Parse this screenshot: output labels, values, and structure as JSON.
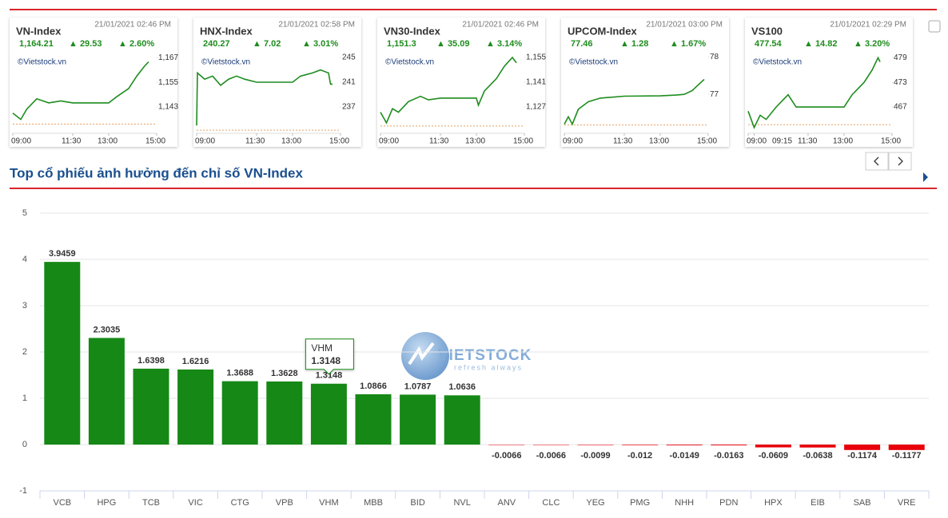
{
  "chart_data": [
    {
      "type": "line",
      "title": "VN-Index",
      "time": "21/01/2021 02:46 PM",
      "price": "1,164.21",
      "change": "▲ 29.53",
      "change_pct": "▲ 2.60%",
      "source": "©Vietstock.vn",
      "color": "#1e8c1e",
      "reference": 1134.68,
      "x": [
        540,
        560,
        575,
        600,
        630,
        660,
        690,
        780,
        800,
        830,
        850,
        870,
        880
      ],
      "values": [
        1140,
        1137,
        1142,
        1147,
        1145,
        1146,
        1145,
        1145,
        1148,
        1152,
        1158,
        1163,
        1165
      ],
      "xlim": [
        540,
        900
      ],
      "xticks": [
        {
          "value": 540,
          "label": "09:00"
        },
        {
          "value": 690,
          "label": "11:30"
        },
        {
          "value": 780,
          "label": "13:00"
        },
        {
          "value": 900,
          "label": "15:00"
        }
      ],
      "ylim": [
        1131,
        1171
      ],
      "yticks": [
        {
          "value": 1143,
          "label": "1,143"
        },
        {
          "value": 1155,
          "label": "1,155"
        },
        {
          "value": 1167,
          "label": "1,167"
        }
      ]
    },
    {
      "type": "line",
      "title": "HNX-Index",
      "time": "21/01/2021 02:58 PM",
      "price": "240.27",
      "change": "▲ 7.02",
      "change_pct": "▲ 3.01%",
      "source": "©Vietstock.vn",
      "color": "#1e8c1e",
      "reference": 233.25,
      "x": [
        540,
        542,
        560,
        580,
        600,
        620,
        640,
        660,
        690,
        780,
        800,
        830,
        850,
        870,
        875,
        880
      ],
      "values": [
        234,
        242.5,
        241.5,
        242,
        240.5,
        241.5,
        242,
        241.5,
        241,
        241,
        242,
        242.5,
        243,
        242.5,
        240.7,
        240.7
      ],
      "xlim": [
        540,
        900
      ],
      "xticks": [
        {
          "value": 540,
          "label": "09:00"
        },
        {
          "value": 690,
          "label": "11:30"
        },
        {
          "value": 780,
          "label": "13:00"
        },
        {
          "value": 900,
          "label": "15:00"
        }
      ],
      "ylim": [
        233,
        246.3
      ],
      "yticks": [
        237,
        241,
        245
      ]
    },
    {
      "type": "line",
      "title": "VN30-Index",
      "time": "21/01/2021 02:46 PM",
      "price": "1,151.3",
      "change": "▲ 35.09",
      "change_pct": "▲ 3.14%",
      "source": "©Vietstock.vn",
      "color": "#1e8c1e",
      "reference": 1116.21,
      "x": [
        540,
        555,
        570,
        585,
        610,
        640,
        660,
        690,
        780,
        785,
        800,
        830,
        850,
        870,
        880
      ],
      "values": [
        1124,
        1118,
        1126,
        1124,
        1130,
        1133,
        1131,
        1132,
        1132,
        1128,
        1136,
        1143,
        1150,
        1155,
        1152
      ],
      "xlim": [
        540,
        900
      ],
      "xticks": [
        {
          "value": 540,
          "label": "09:00"
        },
        {
          "value": 690,
          "label": "11:30"
        },
        {
          "value": 780,
          "label": "13:00"
        },
        {
          "value": 900,
          "label": "15:00"
        }
      ],
      "ylim": [
        1113,
        1159.5
      ],
      "yticks": [
        {
          "value": 1127,
          "label": "1,127"
        },
        {
          "value": 1141,
          "label": "1,141"
        },
        {
          "value": 1155,
          "label": "1,155"
        }
      ]
    },
    {
      "type": "line",
      "title": "UPCOM-Index",
      "time": "21/01/2021 03:00 PM",
      "price": "77.46",
      "change": "▲ 1.28",
      "change_pct": "▲ 1.67%",
      "source": "©Vietstock.vn",
      "color": "#1e8c1e",
      "reference": 76.18,
      "x": [
        540,
        550,
        560,
        575,
        600,
        630,
        690,
        780,
        820,
        840,
        860,
        880,
        890
      ],
      "values": [
        76.2,
        76.4,
        76.2,
        76.6,
        76.8,
        76.9,
        76.95,
        76.96,
        76.98,
        77.0,
        77.1,
        77.3,
        77.4
      ],
      "xlim": [
        540,
        900
      ],
      "xticks": [
        {
          "value": 540,
          "label": "09:00"
        },
        {
          "value": 690,
          "label": "11:30"
        },
        {
          "value": 780,
          "label": "13:00"
        },
        {
          "value": 900,
          "label": "15:00"
        }
      ],
      "ylim": [
        76,
        78.2
      ],
      "yticks": [
        77,
        78
      ]
    },
    {
      "type": "line",
      "title": "VS100",
      "time": "21/01/2021 02:29 PM",
      "price": "477.54",
      "change": "▲ 14.82",
      "change_pct": "▲ 3.20%",
      "source": "©Vietstock.vn",
      "color": "#1e8c1e",
      "reference": 462.72,
      "x": [
        540,
        555,
        570,
        585,
        610,
        640,
        660,
        690,
        780,
        800,
        830,
        850,
        865,
        870
      ],
      "values": [
        466,
        462,
        465,
        464,
        467,
        470,
        467,
        467,
        467,
        470,
        473,
        476,
        479,
        478
      ],
      "xlim": [
        540,
        900
      ],
      "xticks": [
        {
          "value": 540,
          "label": "09:00"
        },
        {
          "value": 555,
          "label": "09:15"
        },
        {
          "value": 690,
          "label": "11:30"
        },
        {
          "value": 780,
          "label": "13:00"
        },
        {
          "value": 900,
          "label": "15:00"
        }
      ],
      "ylim": [
        461,
        481
      ],
      "yticks": [
        467,
        473,
        479
      ]
    },
    {
      "type": "bar",
      "title": "Top cổ phiếu ảnh hưởng đến chỉ số VN-Index",
      "categories": [
        "VCB",
        "HPG",
        "TCB",
        "VIC",
        "CTG",
        "VPB",
        "VHM",
        "MBB",
        "BID",
        "NVL",
        "ANV",
        "CLC",
        "YEG",
        "PMG",
        "NHH",
        "PDN",
        "HPX",
        "EIB",
        "SAB",
        "VRE"
      ],
      "values": [
        3.9459,
        2.3035,
        1.6398,
        1.6216,
        1.3688,
        1.3628,
        1.3148,
        1.0866,
        1.0787,
        1.0636,
        -0.0066,
        -0.0066,
        -0.0099,
        -0.012,
        -0.0149,
        -0.0163,
        -0.0609,
        -0.0638,
        -0.1174,
        -0.1177
      ],
      "positive_color": "#158815",
      "negative_color": "#e8000b",
      "ylim": [
        -1,
        5
      ],
      "yticks": [
        -1,
        0,
        1,
        2,
        3,
        4,
        5
      ],
      "grid": true,
      "tooltip": {
        "name": "VHM",
        "value": "1.3148"
      },
      "watermark": {
        "brand": "VIETSTOCK",
        "tagline": "refresh always"
      }
    }
  ]
}
